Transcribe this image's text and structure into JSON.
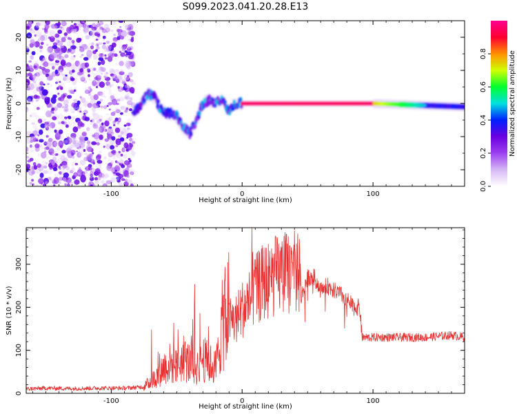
{
  "title": "S099.2023.041.20.28.E13",
  "chart_data": [
    {
      "type": "heatmap",
      "xlabel": "Height of straight line (km)",
      "ylabel": "Frequency (Hz)",
      "xlim": [
        -165,
        170
      ],
      "ylim": [
        -25,
        25
      ],
      "x_ticks": [
        -100,
        0,
        100
      ],
      "y_ticks": [
        -20,
        -10,
        0,
        10,
        20
      ],
      "colorbar": {
        "label": "Normalized spectral amplitude",
        "range": [
          0,
          1
        ],
        "ticks": [
          "0.0",
          "0.2",
          "0.4",
          "0.6",
          "0.8"
        ],
        "colormap": [
          "#ffffff",
          "#d6b8f5",
          "#9b40f0",
          "#6a00e0",
          "#0020ff",
          "#00e0e0",
          "#00ff30",
          "#d0ff00",
          "#ff9000",
          "#ff0030",
          "#ff0090"
        ]
      },
      "description_values": {
        "noise_region_x": [
          -165,
          -83
        ],
        "signal_track": [
          {
            "x": -83,
            "y": -3
          },
          {
            "x": -77,
            "y": 0
          },
          {
            "x": -72,
            "y": 3
          },
          {
            "x": -67,
            "y": 2
          },
          {
            "x": -62,
            "y": -2
          },
          {
            "x": -55,
            "y": -3
          },
          {
            "x": -50,
            "y": -4
          },
          {
            "x": -45,
            "y": -7
          },
          {
            "x": -40,
            "y": -9
          },
          {
            "x": -35,
            "y": -5
          },
          {
            "x": -30,
            "y": 0
          },
          {
            "x": -25,
            "y": 1
          },
          {
            "x": -20,
            "y": 0
          },
          {
            "x": -15,
            "y": 1
          },
          {
            "x": -10,
            "y": -2
          },
          {
            "x": -5,
            "y": 0
          },
          {
            "x": 0,
            "y": 0
          },
          {
            "x": 50,
            "y": 0
          },
          {
            "x": 100,
            "y": 0
          },
          {
            "x": 170,
            "y": -1
          }
        ],
        "peak_amplitude_x": [
          0,
          100
        ]
      }
    },
    {
      "type": "line",
      "xlabel": "Height of straight line (km)",
      "ylabel": "SNR (10 * v/v)",
      "xlim": [
        -165,
        170
      ],
      "ylim": [
        0,
        385
      ],
      "x_ticks": [
        -100,
        0,
        100
      ],
      "y_ticks": [
        0,
        100,
        200,
        300
      ],
      "color": "#e83030",
      "series": [
        {
          "x": [
            -165,
            -150,
            -130,
            -110,
            -90,
            -75,
            -65,
            -60,
            -55,
            -50,
            -45,
            -40,
            -35,
            -30,
            -25,
            -20,
            -15,
            -10,
            -5,
            0,
            5,
            10,
            15,
            20,
            25,
            30,
            35,
            40,
            44,
            45,
            50,
            55,
            60,
            65,
            70,
            75,
            80,
            85,
            90,
            92,
            100,
            120,
            140,
            160,
            170
          ],
          "values": [
            10,
            12,
            11,
            12,
            12,
            15,
            40,
            60,
            70,
            60,
            80,
            70,
            60,
            80,
            70,
            60,
            160,
            200,
            200,
            230,
            250,
            280,
            300,
            310,
            320,
            325,
            330,
            330,
            325,
            220,
            270,
            270,
            240,
            250,
            240,
            230,
            220,
            200,
            200,
            130,
            130,
            130,
            130,
            135,
            130
          ]
        }
      ]
    }
  ]
}
